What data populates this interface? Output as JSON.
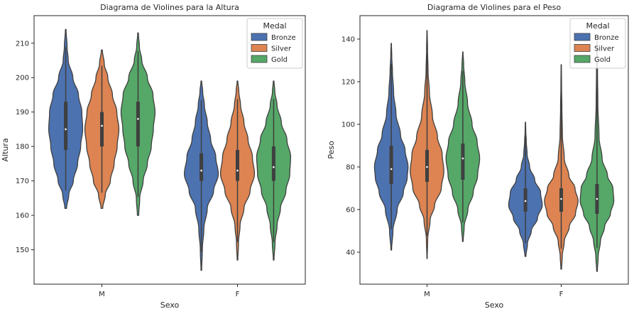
{
  "colors": {
    "Bronze": "#4c72b0",
    "Silver": "#dd8452",
    "Gold": "#55a868",
    "outline": "#3f3f3f"
  },
  "chart_data": [
    {
      "type": "violin",
      "title": "Diagrama de Violines para la Altura",
      "xlabel": "Sexo",
      "ylabel": "Altura",
      "categories": [
        "M",
        "F"
      ],
      "ylim": [
        140,
        218
      ],
      "yticks": [
        150,
        160,
        170,
        180,
        190,
        200,
        210
      ],
      "legend": {
        "title": "Medal",
        "entries": [
          "Bronze",
          "Silver",
          "Gold"
        ],
        "placement": "top-right"
      },
      "series": [
        {
          "name": "Bronze",
          "stats": [
            {
              "category": "M",
              "min": 162,
              "max": 214,
              "q1": 179,
              "median": 185,
              "q3": 193,
              "density": [
                [
                  162,
                  0.05
                ],
                [
                  166,
                  0.18
                ],
                [
                  170,
                  0.45
                ],
                [
                  175,
                  0.7
                ],
                [
                  180,
                  0.88
                ],
                [
                  185,
                  1.0
                ],
                [
                  190,
                  0.95
                ],
                [
                  195,
                  0.75
                ],
                [
                  200,
                  0.42
                ],
                [
                  205,
                  0.15
                ],
                [
                  209,
                  0.08
                ],
                [
                  214,
                  0.02
                ]
              ]
            },
            {
              "category": "F",
              "min": 144,
              "max": 199,
              "q1": 170,
              "median": 173,
              "q3": 178,
              "density": [
                [
                  144,
                  0.02
                ],
                [
                  150,
                  0.06
                ],
                [
                  156,
                  0.15
                ],
                [
                  162,
                  0.35
                ],
                [
                  167,
                  0.72
                ],
                [
                  172,
                  1.0
                ],
                [
                  177,
                  0.85
                ],
                [
                  182,
                  0.55
                ],
                [
                  187,
                  0.35
                ],
                [
                  192,
                  0.18
                ],
                [
                  196,
                  0.08
                ],
                [
                  199,
                  0.02
                ]
              ]
            }
          ]
        },
        {
          "name": "Silver",
          "stats": [
            {
              "category": "M",
              "min": 162,
              "max": 208,
              "q1": 180,
              "median": 186,
              "q3": 190,
              "density": [
                [
                  162,
                  0.05
                ],
                [
                  166,
                  0.2
                ],
                [
                  170,
                  0.5
                ],
                [
                  175,
                  0.72
                ],
                [
                  180,
                  0.9
                ],
                [
                  185,
                  1.0
                ],
                [
                  190,
                  0.88
                ],
                [
                  195,
                  0.62
                ],
                [
                  200,
                  0.35
                ],
                [
                  204,
                  0.14
                ],
                [
                  208,
                  0.03
                ]
              ]
            },
            {
              "category": "F",
              "min": 147,
              "max": 199,
              "q1": 170,
              "median": 173,
              "q3": 179,
              "density": [
                [
                  147,
                  0.02
                ],
                [
                  152,
                  0.06
                ],
                [
                  157,
                  0.15
                ],
                [
                  162,
                  0.38
                ],
                [
                  167,
                  0.74
                ],
                [
                  172,
                  1.0
                ],
                [
                  177,
                  0.88
                ],
                [
                  182,
                  0.62
                ],
                [
                  187,
                  0.38
                ],
                [
                  192,
                  0.18
                ],
                [
                  196,
                  0.08
                ],
                [
                  199,
                  0.02
                ]
              ]
            }
          ]
        },
        {
          "name": "Gold",
          "stats": [
            {
              "category": "M",
              "min": 160,
              "max": 213,
              "q1": 180,
              "median": 188,
              "q3": 193,
              "density": [
                [
                  160,
                  0.04
                ],
                [
                  165,
                  0.1
                ],
                [
                  170,
                  0.3
                ],
                [
                  175,
                  0.55
                ],
                [
                  180,
                  0.78
                ],
                [
                  185,
                  0.9
                ],
                [
                  190,
                  1.0
                ],
                [
                  195,
                  0.88
                ],
                [
                  200,
                  0.55
                ],
                [
                  205,
                  0.22
                ],
                [
                  209,
                  0.08
                ],
                [
                  213,
                  0.02
                ]
              ]
            },
            {
              "category": "F",
              "min": 147,
              "max": 199,
              "q1": 170,
              "median": 174,
              "q3": 180,
              "density": [
                [
                  147,
                  0.02
                ],
                [
                  152,
                  0.08
                ],
                [
                  157,
                  0.2
                ],
                [
                  162,
                  0.4
                ],
                [
                  167,
                  0.72
                ],
                [
                  172,
                  0.95
                ],
                [
                  177,
                  1.0
                ],
                [
                  182,
                  0.78
                ],
                [
                  187,
                  0.45
                ],
                [
                  192,
                  0.2
                ],
                [
                  196,
                  0.07
                ],
                [
                  199,
                  0.02
                ]
              ]
            }
          ]
        }
      ]
    },
    {
      "type": "violin",
      "title": "Diagrama de Violines para el Peso",
      "xlabel": "Sexo",
      "ylabel": "Peso",
      "categories": [
        "M",
        "F"
      ],
      "ylim": [
        25,
        151
      ],
      "yticks": [
        40,
        60,
        80,
        100,
        120,
        140
      ],
      "legend": {
        "title": "Medal",
        "entries": [
          "Bronze",
          "Silver",
          "Gold"
        ],
        "placement": "top-right"
      },
      "series": [
        {
          "name": "Bronze",
          "stats": [
            {
              "category": "M",
              "min": 41,
              "max": 138,
              "q1": 72,
              "median": 79,
              "q3": 90,
              "density": [
                [
                  41,
                  0.02
                ],
                [
                  50,
                  0.1
                ],
                [
                  60,
                  0.35
                ],
                [
                  68,
                  0.72
                ],
                [
                  75,
                  0.95
                ],
                [
                  80,
                  1.0
                ],
                [
                  88,
                  0.82
                ],
                [
                  95,
                  0.55
                ],
                [
                  105,
                  0.28
                ],
                [
                  115,
                  0.14
                ],
                [
                  125,
                  0.07
                ],
                [
                  132,
                  0.03
                ],
                [
                  138,
                  0.01
                ]
              ]
            },
            {
              "category": "F",
              "min": 38,
              "max": 101,
              "q1": 59,
              "median": 64,
              "q3": 70,
              "density": [
                [
                  38,
                  0.03
                ],
                [
                  44,
                  0.12
                ],
                [
                  50,
                  0.35
                ],
                [
                  56,
                  0.72
                ],
                [
                  62,
                  1.0
                ],
                [
                  68,
                  0.9
                ],
                [
                  74,
                  0.55
                ],
                [
                  80,
                  0.25
                ],
                [
                  86,
                  0.1
                ],
                [
                  92,
                  0.05
                ],
                [
                  97,
                  0.02
                ],
                [
                  101,
                  0.01
                ]
              ]
            }
          ]
        },
        {
          "name": "Silver",
          "stats": [
            {
              "category": "M",
              "min": 37,
              "max": 144,
              "q1": 73,
              "median": 80,
              "q3": 88,
              "density": [
                [
                  37,
                  0.01
                ],
                [
                  46,
                  0.04
                ],
                [
                  55,
                  0.18
                ],
                [
                  62,
                  0.45
                ],
                [
                  70,
                  0.85
                ],
                [
                  78,
                  1.0
                ],
                [
                  86,
                  0.9
                ],
                [
                  94,
                  0.62
                ],
                [
                  104,
                  0.32
                ],
                [
                  115,
                  0.14
                ],
                [
                  125,
                  0.06
                ],
                [
                  135,
                  0.03
                ],
                [
                  144,
                  0.01
                ]
              ]
            },
            {
              "category": "F",
              "min": 32,
              "max": 128,
              "q1": 59,
              "median": 65,
              "q3": 70,
              "density": [
                [
                  32,
                  0.02
                ],
                [
                  38,
                  0.06
                ],
                [
                  45,
                  0.18
                ],
                [
                  52,
                  0.48
                ],
                [
                  58,
                  0.85
                ],
                [
                  64,
                  1.0
                ],
                [
                  70,
                  0.82
                ],
                [
                  76,
                  0.45
                ],
                [
                  84,
                  0.18
                ],
                [
                  95,
                  0.07
                ],
                [
                  108,
                  0.04
                ],
                [
                  118,
                  0.02
                ],
                [
                  128,
                  0.01
                ]
              ]
            }
          ]
        },
        {
          "name": "Gold",
          "stats": [
            {
              "category": "M",
              "min": 45,
              "max": 134,
              "q1": 74,
              "median": 84,
              "q3": 91,
              "density": [
                [
                  45,
                  0.02
                ],
                [
                  52,
                  0.08
                ],
                [
                  60,
                  0.3
                ],
                [
                  68,
                  0.62
                ],
                [
                  76,
                  0.88
                ],
                [
                  84,
                  1.0
                ],
                [
                  92,
                  0.85
                ],
                [
                  100,
                  0.55
                ],
                [
                  110,
                  0.28
                ],
                [
                  120,
                  0.12
                ],
                [
                  128,
                  0.05
                ],
                [
                  134,
                  0.01
                ]
              ]
            },
            {
              "category": "F",
              "min": 31,
              "max": 141,
              "q1": 58,
              "median": 65,
              "q3": 72,
              "density": [
                [
                  31,
                  0.02
                ],
                [
                  38,
                  0.07
                ],
                [
                  45,
                  0.2
                ],
                [
                  52,
                  0.45
                ],
                [
                  58,
                  0.8
                ],
                [
                  64,
                  1.0
                ],
                [
                  70,
                  0.95
                ],
                [
                  76,
                  0.62
                ],
                [
                  84,
                  0.3
                ],
                [
                  94,
                  0.12
                ],
                [
                  110,
                  0.05
                ],
                [
                  125,
                  0.03
                ],
                [
                  141,
                  0.01
                ]
              ]
            }
          ]
        }
      ]
    }
  ]
}
